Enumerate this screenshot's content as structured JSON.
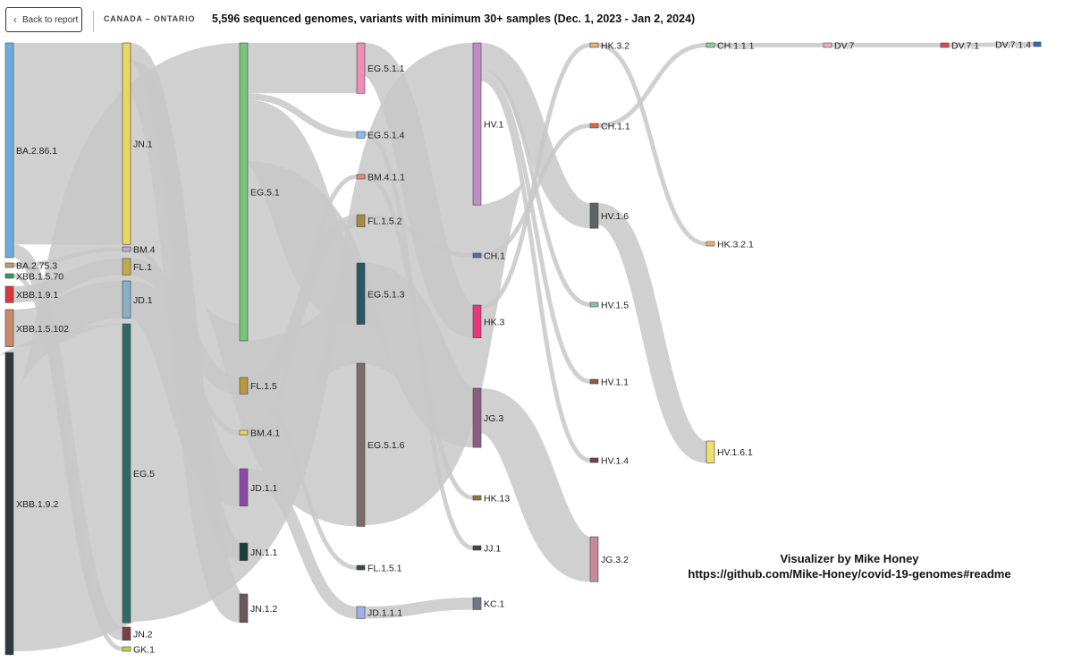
{
  "nav": {
    "back_label": "Back to report",
    "region": "CANADA – ONTARIO"
  },
  "title": "5,596 sequenced genomes, variants with minimum 30+ samples (Dec. 1, 2023 - Jan 2, 2024)",
  "credit": {
    "line1": "Visualizer by Mike Honey",
    "line2": "https://github.com/Mike-Honey/covid-19-genomes#readme"
  },
  "colors": {
    "link": "#c8c8c8",
    "link_stroke": "#b4b4b4",
    "node_stroke": "#444444"
  },
  "chart_data": {
    "type": "sankey",
    "title": "5,596 sequenced genomes, variants with minimum 30+ samples (Dec. 1, 2023 - Jan 2, 2024)",
    "units": "sequenced genomes (approximate, read from band widths)",
    "nodes": [
      {
        "id": "BA.2.86.1",
        "column": 0,
        "value": 1960,
        "color": "#6aaee0"
      },
      {
        "id": "BA.2.75.3",
        "column": 0,
        "value": 40,
        "color": "#b3a46d"
      },
      {
        "id": "XBB.1.5.70",
        "column": 0,
        "value": 40,
        "color": "#2f9e5c"
      },
      {
        "id": "XBB.1.9.1",
        "column": 0,
        "value": 150,
        "color": "#d6383e"
      },
      {
        "id": "XBB.1.5.102",
        "column": 0,
        "value": 340,
        "color": "#c88a6a"
      },
      {
        "id": "XBB.1.9.2",
        "column": 0,
        "value": 2760,
        "color": "#2e3a3a"
      },
      {
        "id": "JN.1",
        "column": 1,
        "value": 1840,
        "color": "#e8d85e"
      },
      {
        "id": "BM.4",
        "column": 1,
        "value": 40,
        "color": "#c8a2d8"
      },
      {
        "id": "FL.1",
        "column": 1,
        "value": 150,
        "color": "#c4a94a"
      },
      {
        "id": "JD.1",
        "column": 1,
        "value": 340,
        "color": "#88afc8"
      },
      {
        "id": "EG.5",
        "column": 1,
        "value": 2730,
        "color": "#2e6b63"
      },
      {
        "id": "JN.2",
        "column": 1,
        "value": 120,
        "color": "#7a3f44"
      },
      {
        "id": "GK.1",
        "column": 1,
        "value": 40,
        "color": "#aadc3e"
      },
      {
        "id": "EG.5.1",
        "column": 2,
        "value": 2720,
        "color": "#74c47a"
      },
      {
        "id": "FL.1.5",
        "column": 2,
        "value": 150,
        "color": "#b8983e"
      },
      {
        "id": "BM.4.1",
        "column": 2,
        "value": 40,
        "color": "#e8d85e"
      },
      {
        "id": "JD.1.1",
        "column": 2,
        "value": 340,
        "color": "#8c49a6"
      },
      {
        "id": "JN.1.1",
        "column": 2,
        "value": 160,
        "color": "#1f3e3e"
      },
      {
        "id": "JN.1.2",
        "column": 2,
        "value": 260,
        "color": "#6b585a"
      },
      {
        "id": "EG.5.1.1",
        "column": 3,
        "value": 460,
        "color": "#ee8db8"
      },
      {
        "id": "EG.5.1.4",
        "column": 3,
        "value": 60,
        "color": "#89bde8"
      },
      {
        "id": "BM.4.1.1",
        "column": 3,
        "value": 40,
        "color": "#e88a78"
      },
      {
        "id": "FL.1.5.2",
        "column": 3,
        "value": 110,
        "color": "#a68a44"
      },
      {
        "id": "EG.5.1.3",
        "column": 3,
        "value": 560,
        "color": "#2a5866"
      },
      {
        "id": "EG.5.1.6",
        "column": 3,
        "value": 1490,
        "color": "#7b6b6b"
      },
      {
        "id": "FL.1.5.1",
        "column": 3,
        "value": 40,
        "color": "#3f4848"
      },
      {
        "id": "JD.1.1.1",
        "column": 3,
        "value": 110,
        "color": "#9cb2e8"
      },
      {
        "id": "HV.1",
        "column": 4,
        "value": 1480,
        "color": "#bf8cc6"
      },
      {
        "id": "CH.1",
        "column": 4,
        "value": 40,
        "color": "#4a6fa6"
      },
      {
        "id": "HK.3",
        "column": 4,
        "value": 300,
        "color": "#e53a7a"
      },
      {
        "id": "JG.3",
        "column": 4,
        "value": 540,
        "color": "#8c5e7e"
      },
      {
        "id": "HK.13",
        "column": 4,
        "value": 40,
        "color": "#8a7a3a"
      },
      {
        "id": "JJ.1",
        "column": 4,
        "value": 40,
        "color": "#3a4848"
      },
      {
        "id": "KC.1",
        "column": 4,
        "value": 110,
        "color": "#707888"
      },
      {
        "id": "HK.3.2",
        "column": 5,
        "value": 40,
        "color": "#f0b06c"
      },
      {
        "id": "CH.1.1",
        "column": 5,
        "value": 40,
        "color": "#e26a34"
      },
      {
        "id": "HV.1.6",
        "column": 5,
        "value": 230,
        "color": "#5a6464"
      },
      {
        "id": "HV.1.5",
        "column": 5,
        "value": 40,
        "color": "#8abeb8"
      },
      {
        "id": "HV.1.1",
        "column": 5,
        "value": 40,
        "color": "#8e5a3a"
      },
      {
        "id": "HV.1.4",
        "column": 5,
        "value": 40,
        "color": "#7a3a5e"
      },
      {
        "id": "JG.3.2",
        "column": 5,
        "value": 410,
        "color": "#c88a9a"
      },
      {
        "id": "CH.1.1.1",
        "column": 6,
        "value": 40,
        "color": "#8cd09a"
      },
      {
        "id": "HK.3.2.1",
        "column": 6,
        "value": 40,
        "color": "#f0b06c"
      },
      {
        "id": "HV.1.6.1",
        "column": 6,
        "value": 200,
        "color": "#f0df6a"
      },
      {
        "id": "DV.7",
        "column": 7,
        "value": 40,
        "color": "#f2a8c8"
      },
      {
        "id": "DV.7.1",
        "column": 8,
        "value": 40,
        "color": "#e0485a"
      },
      {
        "id": "DV.7.1.4",
        "column": 9,
        "value": 40,
        "color": "#2a6ab0"
      }
    ],
    "links": [
      {
        "source": "BA.2.86.1",
        "target": "JN.1",
        "value": 1840
      },
      {
        "source": "BA.2.86.1",
        "target": "JN.2",
        "value": 120
      },
      {
        "source": "BA.2.75.3",
        "target": "BM.4",
        "value": 40
      },
      {
        "source": "XBB.1.5.70",
        "target": "GK.1",
        "value": 40
      },
      {
        "source": "XBB.1.9.1",
        "target": "FL.1",
        "value": 150
      },
      {
        "source": "XBB.1.5.102",
        "target": "JD.1",
        "value": 340
      },
      {
        "source": "XBB.1.9.2",
        "target": "EG.5",
        "value": 2730
      },
      {
        "source": "JN.1",
        "target": "JN.1.1",
        "value": 160
      },
      {
        "source": "JN.1",
        "target": "JN.1.2",
        "value": 260
      },
      {
        "source": "BM.4",
        "target": "BM.4.1",
        "value": 40
      },
      {
        "source": "FL.1",
        "target": "FL.1.5",
        "value": 150
      },
      {
        "source": "JD.1",
        "target": "JD.1.1",
        "value": 340
      },
      {
        "source": "EG.5",
        "target": "EG.5.1",
        "value": 2720
      },
      {
        "source": "EG.5.1",
        "target": "EG.5.1.1",
        "value": 460
      },
      {
        "source": "EG.5.1",
        "target": "EG.5.1.4",
        "value": 60
      },
      {
        "source": "EG.5.1",
        "target": "EG.5.1.3",
        "value": 560
      },
      {
        "source": "EG.5.1",
        "target": "EG.5.1.6",
        "value": 1490
      },
      {
        "source": "BM.4.1",
        "target": "BM.4.1.1",
        "value": 40
      },
      {
        "source": "FL.1.5",
        "target": "FL.1.5.2",
        "value": 110
      },
      {
        "source": "FL.1.5",
        "target": "FL.1.5.1",
        "value": 40
      },
      {
        "source": "JD.1.1",
        "target": "JD.1.1.1",
        "value": 110
      },
      {
        "source": "EG.5.1.1",
        "target": "HK.3",
        "value": 300
      },
      {
        "source": "EG.5.1.4",
        "target": "JJ.1",
        "value": 40
      },
      {
        "source": "EG.5.1.3",
        "target": "JG.3",
        "value": 540
      },
      {
        "source": "EG.5.1.6",
        "target": "HV.1",
        "value": 1480
      },
      {
        "source": "FL.1.5.2",
        "target": "CH.1",
        "value": 40
      },
      {
        "source": "BM.4.1.1",
        "target": "HK.13",
        "value": 40
      },
      {
        "source": "JD.1.1.1",
        "target": "KC.1",
        "value": 110
      },
      {
        "source": "HV.1",
        "target": "HV.1.6",
        "value": 230
      },
      {
        "source": "HV.1",
        "target": "HV.1.5",
        "value": 40
      },
      {
        "source": "HV.1",
        "target": "HV.1.1",
        "value": 40
      },
      {
        "source": "HV.1",
        "target": "HV.1.4",
        "value": 40
      },
      {
        "source": "HK.3",
        "target": "HK.3.2",
        "value": 40
      },
      {
        "source": "CH.1",
        "target": "CH.1.1",
        "value": 40
      },
      {
        "source": "JG.3",
        "target": "JG.3.2",
        "value": 410
      },
      {
        "source": "HK.3.2",
        "target": "HK.3.2.1",
        "value": 40
      },
      {
        "source": "CH.1.1",
        "target": "CH.1.1.1",
        "value": 40
      },
      {
        "source": "HV.1.6",
        "target": "HV.1.6.1",
        "value": 200
      },
      {
        "source": "CH.1.1.1",
        "target": "DV.7",
        "value": 40
      },
      {
        "source": "DV.7",
        "target": "DV.7.1",
        "value": 40
      },
      {
        "source": "DV.7.1",
        "target": "DV.7.1.4",
        "value": 40
      }
    ]
  }
}
